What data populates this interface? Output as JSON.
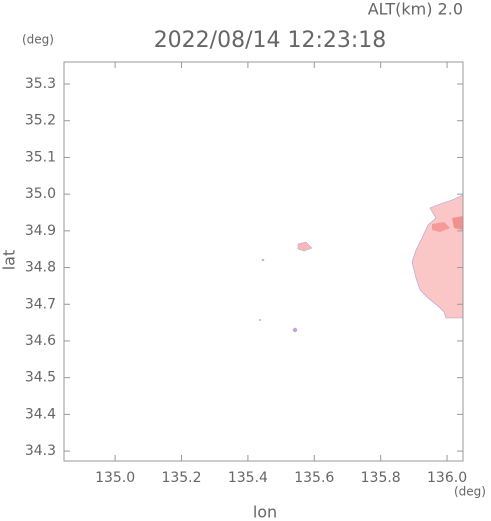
{
  "chart_data": {
    "type": "map",
    "title": "2022/08/14 12:23:18",
    "altitude_label": "ALT(km) 2.0",
    "x_label": "lon",
    "y_label": "lat",
    "x_unit": "(deg)",
    "y_unit": "(deg)",
    "xlim": [
      134.846,
      136.048
    ],
    "ylim": [
      34.273,
      35.36
    ],
    "xticks": [
      {
        "value": 135.0,
        "label": "135.0"
      },
      135.2,
      135.4,
      135.6,
      135.8,
      {
        "value": 136.0,
        "label": "136.0"
      }
    ],
    "yticks": [
      35.3,
      35.2,
      35.1,
      {
        "value": 35.0,
        "label": "35.0"
      },
      34.9,
      34.8,
      34.7,
      34.6,
      34.5,
      34.4,
      34.3
    ]
  }
}
